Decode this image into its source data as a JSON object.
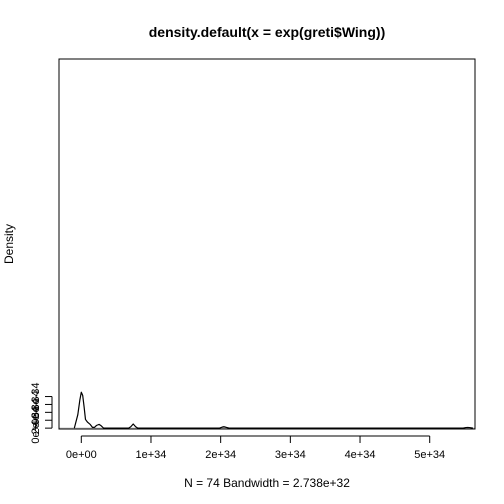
{
  "chart_data": {
    "type": "line",
    "title": "density.default(x = exp(greti$Wing))",
    "xlabel": "N = 74   Bandwidth = 2.738e+32",
    "ylabel": "Density",
    "xlim": [
      -3.2e+33,
      5.65e+34
    ],
    "ylim": [
      -2.2e-35,
      9.35e-33
    ],
    "x_ticks": [
      {
        "value": 0,
        "label": "0e+00"
      },
      {
        "value": 1e+34,
        "label": "1e+34"
      },
      {
        "value": 2e+34,
        "label": "2e+34"
      },
      {
        "value": 3e+34,
        "label": "3e+34"
      },
      {
        "value": 4e+34,
        "label": "4e+34"
      },
      {
        "value": 5e+34,
        "label": "5e+34"
      }
    ],
    "y_ticks": [
      {
        "value": 0,
        "label": "0e+00"
      },
      {
        "value": 2e-34,
        "label": "2e-34"
      },
      {
        "value": 4e-34,
        "label": "4e-34"
      },
      {
        "value": 6e-34,
        "label": "6e-34"
      },
      {
        "value": 8e-34,
        "label": "8e-34"
      }
    ],
    "baseline": 0,
    "baseline_color": "#bebebe",
    "line_color": "#000000",
    "series": [
      {
        "values": [
          [
            -1e+33,
            0
          ],
          [
            -5e+32,
            3.4e-34
          ],
          [
            -2e+32,
            7.2e-34
          ],
          [
            0,
            9.1e-34
          ],
          [
            2e+32,
            8.3e-34
          ],
          [
            4e+32,
            5.4e-34
          ],
          [
            6e+32,
            2.2e-34
          ],
          [
            9e+32,
            1.5e-34
          ],
          [
            1.3e+33,
            9e-35
          ],
          [
            1.6e+33,
            2e-35
          ],
          [
            1.9e+33,
            2e-35
          ],
          [
            2.2e+33,
            7e-35
          ],
          [
            2.55e+33,
            9.5e-35
          ],
          [
            2.85e+33,
            6e-35
          ],
          [
            3.2e+33,
            0
          ],
          [
            6.8e+33,
            0
          ],
          [
            7.1e+33,
            3.5e-35
          ],
          [
            7.45e+33,
            1.05e-34
          ],
          [
            7.8e+33,
            3.5e-35
          ],
          [
            8.1e+33,
            0
          ],
          [
            1.98e+34,
            0
          ],
          [
            2.02e+34,
            2.5e-35
          ],
          [
            2.045e+34,
            3.5e-35
          ],
          [
            2.07e+34,
            2.5e-35
          ],
          [
            2.12e+34,
            0
          ],
          [
            5.48e+34,
            0
          ],
          [
            5.52e+34,
            1.5e-35
          ],
          [
            5.545e+34,
            1.8e-35
          ],
          [
            5.57e+34,
            1.5e-35
          ],
          [
            5.62e+34,
            0
          ]
        ]
      }
    ]
  }
}
